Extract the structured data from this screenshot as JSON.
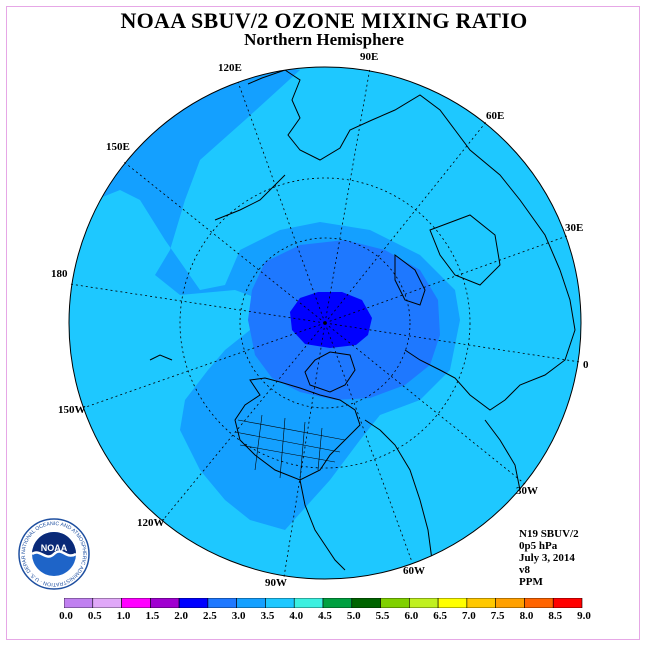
{
  "title": "NOAA SBUV/2 OZONE MIXING RATIO",
  "subtitle": "Northern Hemisphere",
  "logo_text": "NOAA",
  "logo_ring_text": "NATIONAL OCEANIC AND ATMOSPHERIC ADMINISTRATION · U.S. DEPARTMENT OF COMMERCE",
  "longitude_labels": {
    "e90": "90E",
    "e120": "120E",
    "e60": "60E",
    "e150": "150E",
    "e30": "30E",
    "e180": "180",
    "zero": "0",
    "w150": "150W",
    "w30": "30W",
    "w120": "120W",
    "w60": "60W",
    "w90": "90W"
  },
  "info": {
    "instrument": "N19 SBUV/2",
    "level": "0p5 hPa",
    "date": "July 3, 2014",
    "version": "v8",
    "units": "PPM"
  },
  "colorbar": {
    "labels": [
      "0.0",
      "0.5",
      "1.0",
      "1.5",
      "2.0",
      "2.5",
      "3.0",
      "3.5",
      "4.0",
      "4.5",
      "5.0",
      "5.5",
      "6.0",
      "6.5",
      "7.0",
      "7.5",
      "8.0",
      "8.5",
      "9.0"
    ],
    "colors": [
      "#c080f0",
      "#e0a8f8",
      "#ff00ff",
      "#a000d0",
      "#0000ff",
      "#1e78ff",
      "#14a0ff",
      "#1ec8ff",
      "#3cf0e0",
      "#00a040",
      "#006400",
      "#80d000",
      "#c0f020",
      "#ffff00",
      "#ffc800",
      "#ffa000",
      "#ff6400",
      "#ff0000",
      "#966432"
    ]
  },
  "map_colors": {
    "ozone_2_0": "#0000ff",
    "ozone_2_5": "#1e78ff",
    "ozone_3_0": "#14a0ff",
    "ozone_3_5": "#1ec8ff"
  }
}
